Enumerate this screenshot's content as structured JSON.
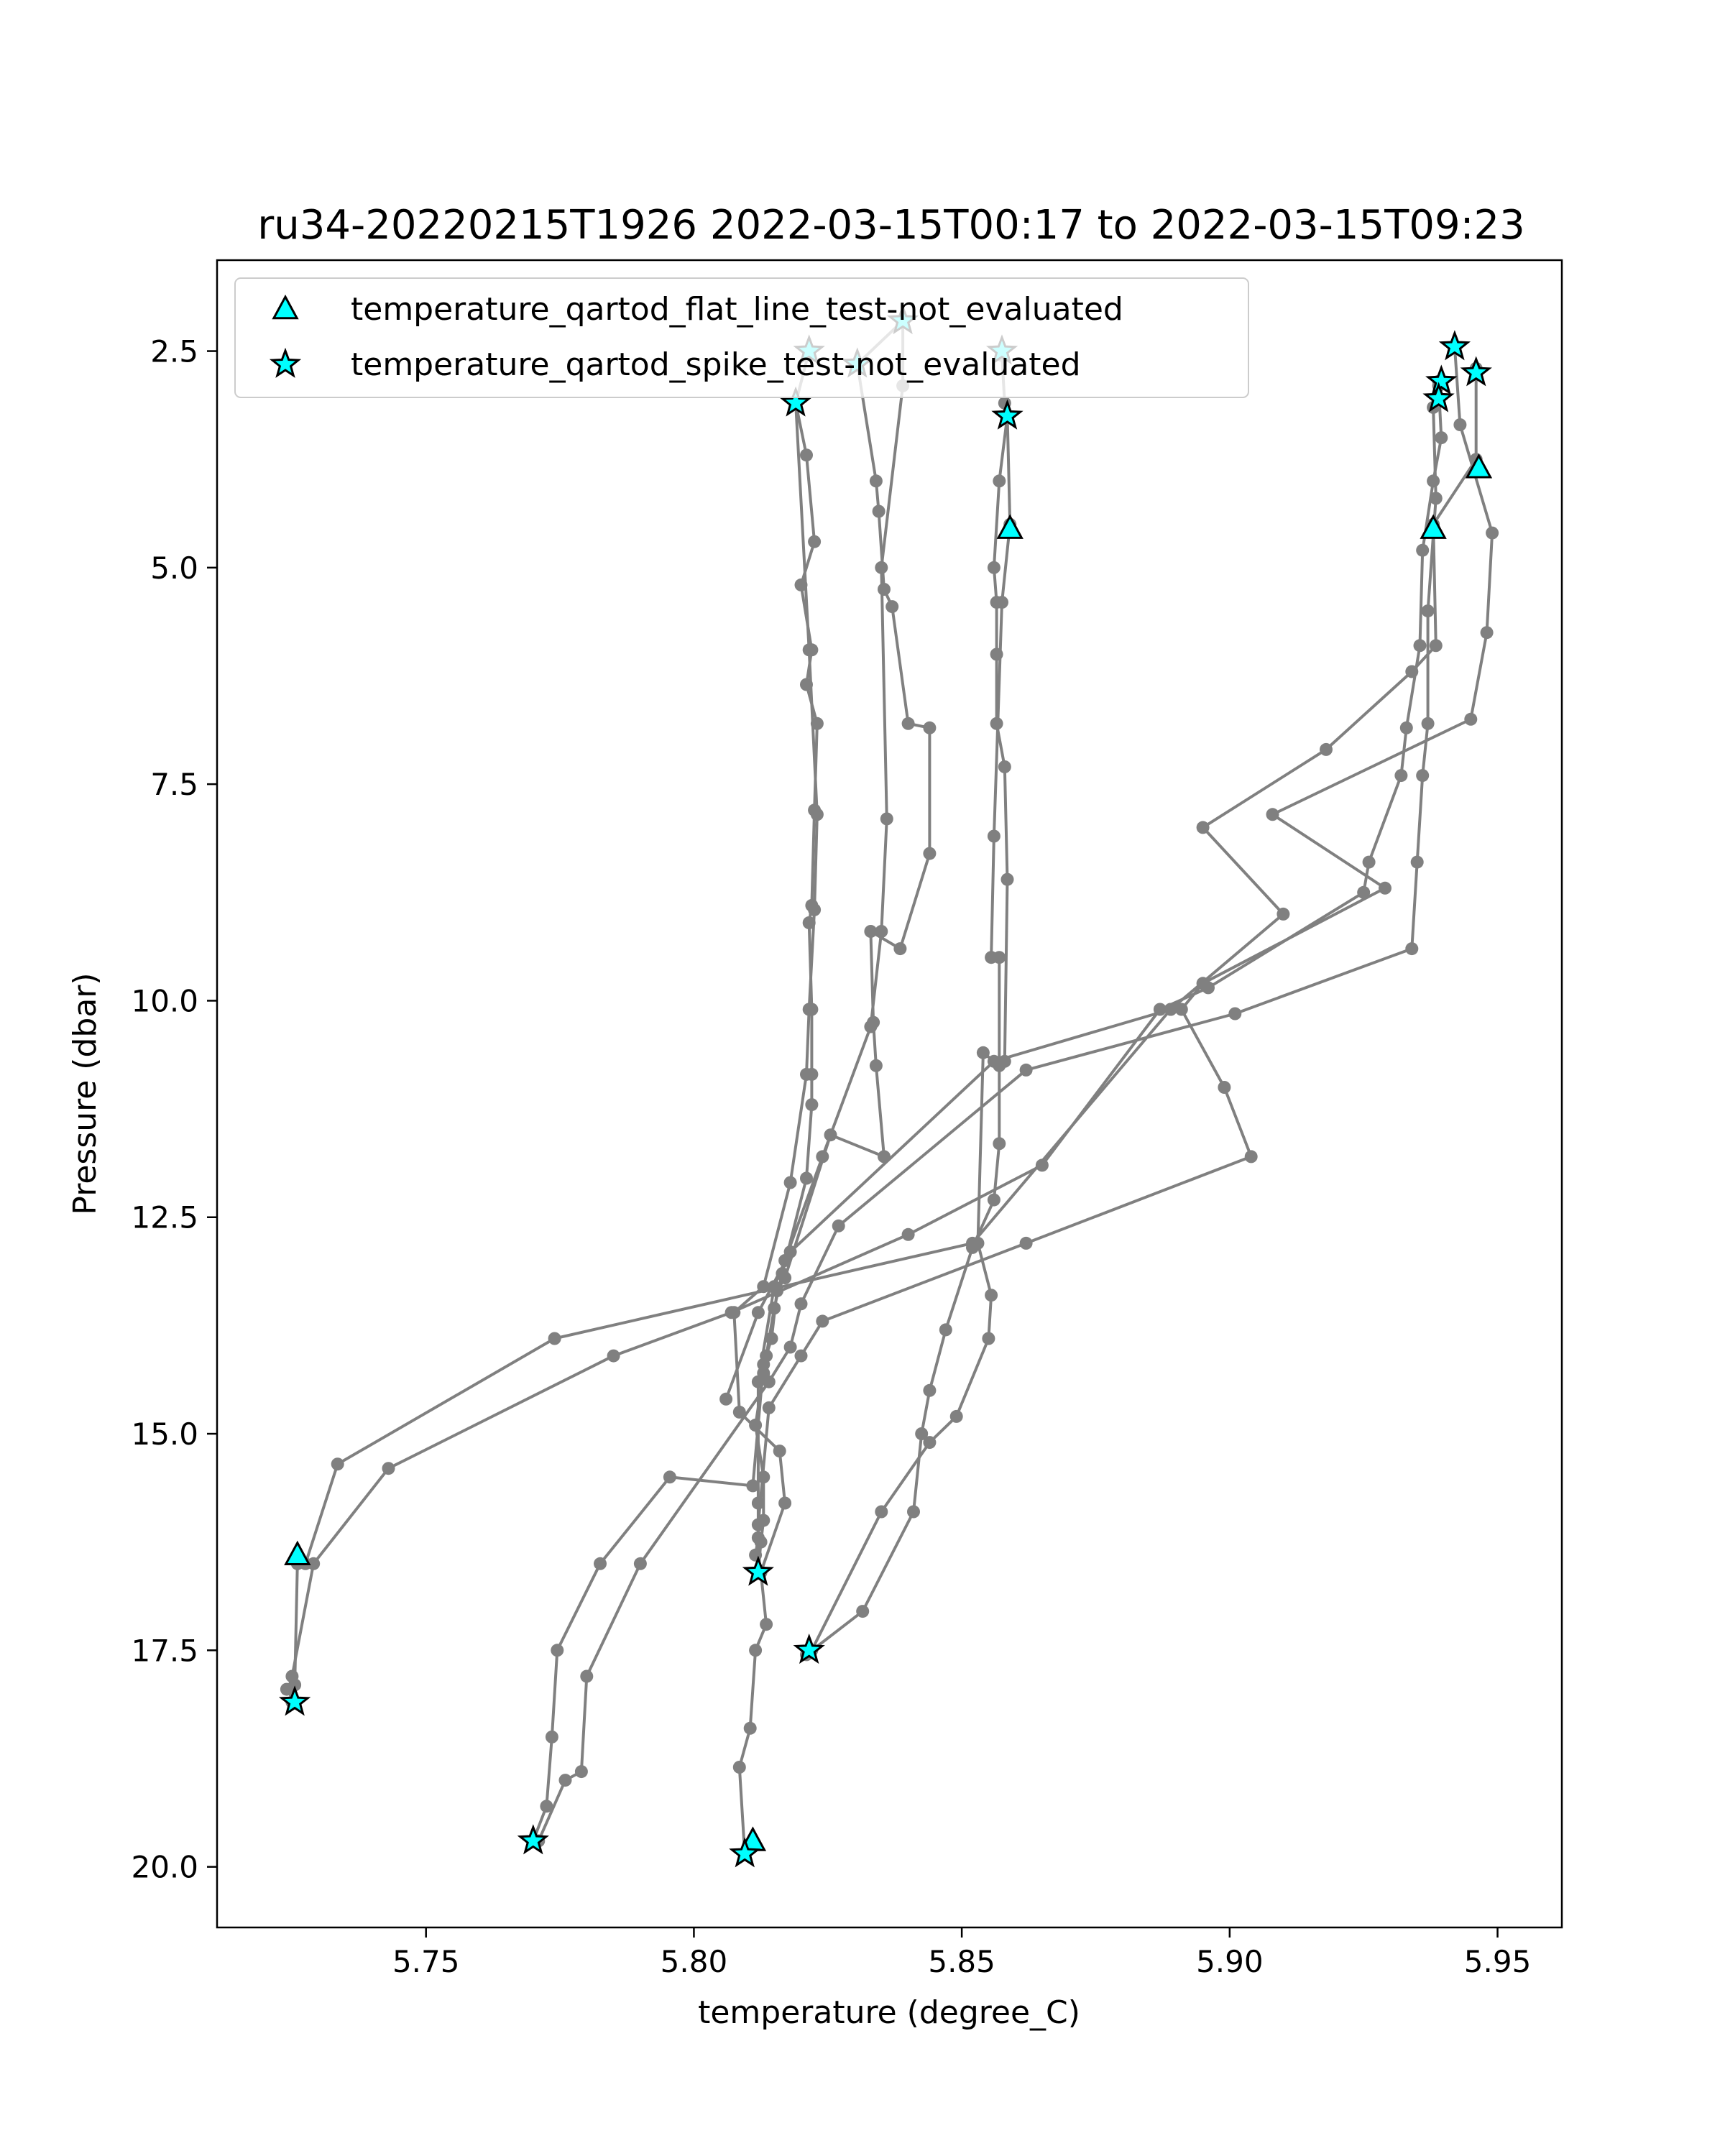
{
  "chart_data": {
    "type": "scatter",
    "title": "ru34-20220215T1926 2022-03-15T00:17 to 2022-03-15T09:23",
    "xlabel": "temperature (degree_C)",
    "ylabel": "Pressure (dbar)",
    "xlim": [
      5.711,
      5.962
    ],
    "ylim": [
      20.7,
      1.45
    ],
    "y_inverted": true,
    "grid": false,
    "x_ticks": [
      5.75,
      5.8,
      5.85,
      5.9,
      5.95
    ],
    "x_tick_labels": [
      "5.75",
      "5.80",
      "5.85",
      "5.90",
      "5.95"
    ],
    "y_ticks": [
      2.5,
      5.0,
      7.5,
      10.0,
      12.5,
      15.0,
      17.5,
      20.0
    ],
    "y_tick_labels": [
      "2.5",
      "5.0",
      "7.5",
      "10.0",
      "12.5",
      "15.0",
      "17.5",
      "20.0"
    ],
    "legend_position": "top-left",
    "colors": {
      "profile_line": "#808080",
      "marker_fill": "#00ffff",
      "marker_edge": "#000000"
    },
    "profiles": [
      {
        "points": [
          [
            5.819,
            3.1
          ],
          [
            5.821,
            3.7
          ],
          [
            5.8225,
            4.7
          ],
          [
            5.82,
            5.2
          ],
          [
            5.822,
            5.95
          ],
          [
            5.821,
            6.35
          ],
          [
            5.823,
            6.8
          ],
          [
            5.8225,
            7.8
          ],
          [
            5.822,
            8.9
          ],
          [
            5.8215,
            9.1
          ],
          [
            5.822,
            10.1
          ],
          [
            5.822,
            10.85
          ],
          [
            5.822,
            11.2
          ],
          [
            5.821,
            12.05
          ],
          [
            5.8165,
            13.15
          ],
          [
            5.815,
            13.55
          ],
          [
            5.8135,
            14.1
          ],
          [
            5.813,
            14.3
          ],
          [
            5.8115,
            14.9
          ],
          [
            5.813,
            15.5
          ],
          [
            5.813,
            16.0
          ],
          [
            5.8125,
            16.25
          ],
          [
            5.812,
            16.6
          ]
        ]
      },
      {
        "points": [
          [
            5.8215,
            2.5
          ],
          [
            5.819,
            3.1
          ],
          [
            5.8215,
            5.95
          ],
          [
            5.823,
            7.85
          ],
          [
            5.8225,
            8.95
          ],
          [
            5.8215,
            10.1
          ],
          [
            5.821,
            10.85
          ],
          [
            5.818,
            12.1
          ],
          [
            5.813,
            13.3
          ],
          [
            5.8075,
            13.6
          ],
          [
            5.8085,
            14.75
          ],
          [
            5.816,
            15.2
          ],
          [
            5.817,
            15.8
          ],
          [
            5.8125,
            16.6
          ],
          [
            5.8135,
            17.2
          ],
          [
            5.8115,
            17.5
          ],
          [
            5.8105,
            18.4
          ],
          [
            5.8085,
            18.85
          ],
          [
            5.8095,
            19.85
          ]
        ]
      },
      {
        "points": [
          [
            5.839,
            2.15
          ],
          [
            5.8305,
            2.65
          ],
          [
            5.834,
            4.0
          ],
          [
            5.8345,
            4.35
          ],
          [
            5.8355,
            5.25
          ],
          [
            5.837,
            5.45
          ],
          [
            5.84,
            6.8
          ],
          [
            5.844,
            6.85
          ],
          [
            5.844,
            8.3
          ],
          [
            5.8385,
            9.4
          ],
          [
            5.833,
            9.2
          ],
          [
            5.8335,
            10.25
          ],
          [
            5.834,
            10.75
          ],
          [
            5.8355,
            11.8
          ],
          [
            5.8255,
            11.55
          ],
          [
            5.817,
            13.2
          ],
          [
            5.8155,
            13.35
          ],
          [
            5.8145,
            13.9
          ],
          [
            5.813,
            14.2
          ],
          [
            5.811,
            15.6
          ],
          [
            5.7955,
            15.5
          ],
          [
            5.7825,
            16.5
          ],
          [
            5.7745,
            17.5
          ],
          [
            5.7735,
            18.5
          ],
          [
            5.7725,
            19.3
          ],
          [
            5.77,
            19.7
          ]
        ]
      },
      {
        "points": [
          [
            5.839,
            2.15
          ],
          [
            5.839,
            2.9
          ],
          [
            5.835,
            5.0
          ],
          [
            5.836,
            7.9
          ],
          [
            5.835,
            9.2
          ],
          [
            5.833,
            10.3
          ],
          [
            5.824,
            11.8
          ],
          [
            5.817,
            13.0
          ],
          [
            5.815,
            13.3
          ],
          [
            5.812,
            14.4
          ],
          [
            5.812,
            15.8
          ],
          [
            5.812,
            16.2
          ],
          [
            5.8115,
            16.4
          ]
        ]
      },
      {
        "points": [
          [
            5.8575,
            2.55
          ],
          [
            5.858,
            3.1
          ],
          [
            5.8585,
            3.25
          ],
          [
            5.857,
            4.0
          ],
          [
            5.856,
            5.0
          ],
          [
            5.8565,
            5.4
          ],
          [
            5.8565,
            6.0
          ],
          [
            5.8565,
            6.8
          ],
          [
            5.858,
            7.3
          ],
          [
            5.8585,
            8.6
          ],
          [
            5.858,
            10.7
          ],
          [
            5.857,
            10.75
          ],
          [
            5.854,
            10.6
          ],
          [
            5.853,
            12.8
          ],
          [
            5.8555,
            13.4
          ],
          [
            5.855,
            13.9
          ],
          [
            5.849,
            14.8
          ],
          [
            5.844,
            15.1
          ],
          [
            5.835,
            15.9
          ],
          [
            5.822,
            17.5
          ]
        ]
      },
      {
        "points": [
          [
            5.8585,
            3.25
          ],
          [
            5.859,
            4.5
          ],
          [
            5.8575,
            5.4
          ],
          [
            5.856,
            8.1
          ],
          [
            5.8555,
            9.5
          ],
          [
            5.857,
            9.5
          ],
          [
            5.857,
            11.65
          ],
          [
            5.856,
            12.3
          ],
          [
            5.852,
            12.85
          ],
          [
            5.847,
            13.8
          ],
          [
            5.844,
            14.5
          ],
          [
            5.8425,
            15.0
          ],
          [
            5.841,
            15.9
          ],
          [
            5.8315,
            17.05
          ],
          [
            5.821,
            17.55
          ]
        ]
      },
      {
        "points": [
          [
            5.942,
            2.45
          ],
          [
            5.943,
            3.35
          ],
          [
            5.949,
            4.6
          ],
          [
            5.948,
            5.75
          ],
          [
            5.945,
            6.75
          ],
          [
            5.908,
            7.85
          ],
          [
            5.929,
            8.7
          ],
          [
            5.895,
            9.8
          ],
          [
            5.891,
            10.1
          ],
          [
            5.899,
            11.0
          ],
          [
            5.904,
            11.8
          ],
          [
            5.862,
            12.8
          ],
          [
            5.824,
            13.7
          ],
          [
            5.82,
            14.1
          ],
          [
            5.814,
            14.7
          ],
          [
            5.812,
            16.05
          ],
          [
            5.812,
            16.6
          ]
        ]
      },
      {
        "points": [
          [
            5.946,
            2.7
          ],
          [
            5.946,
            3.75
          ],
          [
            5.938,
            4.5
          ],
          [
            5.9385,
            5.9
          ],
          [
            5.934,
            6.2
          ],
          [
            5.918,
            7.1
          ],
          [
            5.895,
            8.0
          ],
          [
            5.91,
            9.0
          ],
          [
            5.889,
            10.1
          ],
          [
            5.856,
            10.7
          ],
          [
            5.818,
            12.9
          ],
          [
            5.812,
            13.6
          ],
          [
            5.806,
            14.6
          ]
        ]
      },
      {
        "points": [
          [
            5.939,
            2.9
          ],
          [
            5.9395,
            3.5
          ],
          [
            5.938,
            4.0
          ],
          [
            5.936,
            4.8
          ],
          [
            5.9355,
            5.9
          ],
          [
            5.933,
            6.85
          ],
          [
            5.932,
            7.4
          ],
          [
            5.926,
            8.4
          ],
          [
            5.925,
            8.75
          ],
          [
            5.896,
            9.85
          ],
          [
            5.887,
            10.1
          ],
          [
            5.865,
            11.9
          ],
          [
            5.84,
            12.7
          ],
          [
            5.807,
            13.6
          ],
          [
            5.785,
            14.1
          ],
          [
            5.743,
            15.4
          ],
          [
            5.729,
            16.5
          ],
          [
            5.725,
            17.8
          ],
          [
            5.725,
            18.1
          ]
        ]
      },
      {
        "points": [
          [
            5.939,
            2.85
          ],
          [
            5.938,
            3.15
          ],
          [
            5.9385,
            4.2
          ],
          [
            5.937,
            5.5
          ],
          [
            5.937,
            6.8
          ],
          [
            5.936,
            7.4
          ],
          [
            5.935,
            8.4
          ],
          [
            5.934,
            9.4
          ],
          [
            5.901,
            10.15
          ],
          [
            5.862,
            10.8
          ],
          [
            5.827,
            12.6
          ],
          [
            5.82,
            13.5
          ],
          [
            5.818,
            14.0
          ],
          [
            5.814,
            14.4
          ],
          [
            5.79,
            16.5
          ],
          [
            5.78,
            17.8
          ],
          [
            5.779,
            18.9
          ],
          [
            5.776,
            19.0
          ],
          [
            5.771,
            19.7
          ]
        ]
      },
      {
        "points": [
          [
            5.889,
            10.1
          ],
          [
            5.852,
            12.8
          ],
          [
            5.774,
            13.9
          ],
          [
            5.7335,
            15.35
          ],
          [
            5.7275,
            16.5
          ],
          [
            5.726,
            16.5
          ],
          [
            5.7255,
            17.9
          ],
          [
            5.724,
            17.95
          ],
          [
            5.7255,
            18.1
          ]
        ]
      }
    ],
    "legend": [
      {
        "marker": "triangle",
        "label": "temperature_qartod_flat_line_test-not_evaluated"
      },
      {
        "marker": "star",
        "label": "temperature_qartod_spike_test-not_evaluated"
      }
    ],
    "series": [
      {
        "name": "temperature_qartod_flat_line_test-not_evaluated",
        "marker": "triangle",
        "points": [
          [
            5.859,
            4.55
          ],
          [
            5.938,
            4.55
          ],
          [
            5.9465,
            3.85
          ],
          [
            5.726,
            16.4
          ],
          [
            5.811,
            19.7
          ]
        ]
      },
      {
        "name": "temperature_qartod_spike_test-not_evaluated",
        "marker": "star",
        "points": [
          [
            5.839,
            2.15
          ],
          [
            5.8215,
            2.5
          ],
          [
            5.8305,
            2.65
          ],
          [
            5.819,
            3.1
          ],
          [
            5.8575,
            2.5
          ],
          [
            5.8585,
            3.25
          ],
          [
            5.942,
            2.45
          ],
          [
            5.946,
            2.75
          ],
          [
            5.9395,
            2.85
          ],
          [
            5.939,
            3.05
          ],
          [
            5.812,
            16.6
          ],
          [
            5.8215,
            17.5
          ],
          [
            5.7255,
            18.1
          ],
          [
            5.77,
            19.7
          ],
          [
            5.8095,
            19.85
          ]
        ]
      }
    ]
  }
}
